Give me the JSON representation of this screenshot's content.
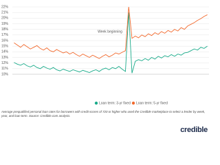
{
  "chart_data": {
    "type": "line",
    "x_label": "Week beginning",
    "categories": [
      null,
      null,
      null,
      null,
      null,
      null,
      null,
      null,
      null,
      null,
      null,
      null,
      null,
      null,
      null,
      null,
      null,
      null,
      null,
      null,
      null,
      null,
      null,
      null,
      null,
      null,
      null,
      null,
      null,
      null,
      null,
      null,
      null,
      null,
      null,
      null,
      null,
      null,
      null,
      null,
      null,
      null,
      null,
      null,
      null,
      null,
      null,
      null,
      null,
      null,
      null,
      null,
      null,
      null,
      null,
      null,
      null,
      null,
      null,
      null
    ],
    "series": [
      {
        "name": "Loan term: 3-yr fixed",
        "color": "#1aab8a",
        "values": [
          12.1,
          11.8,
          11.6,
          11.9,
          11.5,
          11.3,
          11.6,
          11.2,
          11.0,
          11.4,
          11.1,
          10.9,
          11.2,
          10.8,
          10.6,
          10.9,
          10.7,
          10.5,
          10.8,
          10.6,
          10.4,
          10.7,
          10.5,
          10.3,
          10.6,
          10.8,
          10.5,
          10.9,
          11.1,
          10.8,
          11.2,
          11.0,
          11.4,
          10.9,
          10.5,
          21.0,
          10.2,
          12.3,
          12.6,
          12.4,
          12.8,
          12.5,
          13.0,
          12.7,
          13.2,
          12.9,
          13.3,
          13.1,
          13.5,
          13.2,
          13.6,
          13.4,
          13.8,
          13.9,
          14.2,
          14.5,
          14.3,
          14.8,
          14.6,
          15.0
        ]
      },
      {
        "name": "Loan term: 5-yr fixed",
        "color": "#f26a2e",
        "values": [
          15.6,
          15.2,
          14.8,
          15.3,
          14.9,
          14.5,
          14.8,
          15.1,
          14.6,
          14.3,
          14.7,
          14.2,
          14.0,
          14.4,
          14.1,
          13.8,
          14.0,
          13.6,
          13.9,
          13.5,
          13.2,
          13.6,
          13.3,
          13.0,
          13.4,
          13.1,
          12.8,
          13.2,
          13.5,
          13.1,
          13.4,
          13.8,
          13.6,
          13.9,
          14.2,
          22.0,
          16.4,
          16.8,
          16.5,
          17.0,
          16.7,
          17.2,
          16.9,
          17.4,
          17.1,
          17.6,
          17.3,
          17.8,
          17.5,
          18.0,
          17.7,
          18.3,
          18.0,
          18.6,
          18.9,
          19.2,
          19.6,
          19.9,
          20.3,
          20.6
        ]
      }
    ],
    "ylim": [
      10,
      22
    ],
    "yticks": [
      {
        "value": 10,
        "label": "10%"
      },
      {
        "value": 11,
        "label": "11%"
      },
      {
        "value": 12,
        "label": "12%"
      },
      {
        "value": 13,
        "label": "13%"
      },
      {
        "value": 14,
        "label": "14%"
      },
      {
        "value": 15,
        "label": "15%"
      },
      {
        "value": 16,
        "label": "16%"
      },
      {
        "value": 17,
        "label": "17%"
      },
      {
        "value": 18,
        "label": "18%"
      },
      {
        "value": 19,
        "label": "19%"
      },
      {
        "value": 20,
        "label": "20%"
      },
      {
        "value": 21,
        "label": "21%"
      },
      {
        "value": 22,
        "label": "22%"
      }
    ],
    "grid": true,
    "caption": "Average prequalified personal loan rates for borrowers with credit scores of 720 or higher who used the Credible marketplace to select a lender by week, year, and loan term. Source: Credible.com analysis.",
    "logo": "credible"
  }
}
